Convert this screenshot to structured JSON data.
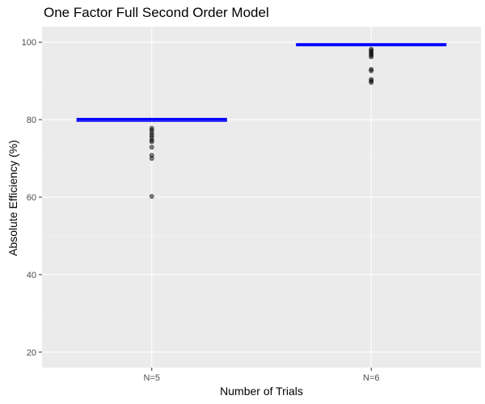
{
  "chart_data": {
    "type": "boxplot",
    "title": "One Factor Full Second Order Model",
    "xlabel": "Number of Trials",
    "ylabel": "Absolute Efficiency (%)",
    "categories": [
      "N=5",
      "N=6"
    ],
    "ylim": [
      16,
      104
    ],
    "yticks": [
      20,
      40,
      60,
      80,
      100
    ],
    "grid": true,
    "boxes": [
      {
        "category": "N=5",
        "q1": 79.6,
        "median": 80.0,
        "q3": 80.3,
        "whisker_low": 79.6,
        "whisker_high": 80.3,
        "outliers": [
          77.8,
          77.3,
          76.6,
          76.0,
          75.4,
          74.7,
          74.3,
          72.9,
          70.8,
          70.0,
          60.2
        ]
      },
      {
        "category": "N=6",
        "q1": 99.1,
        "median": 99.4,
        "q3": 99.6,
        "whisker_low": 99.1,
        "whisker_high": 99.6,
        "outliers": [
          98.2,
          97.8,
          97.4,
          97.0,
          96.6,
          96.2,
          93.0,
          92.6,
          90.4,
          90.0,
          89.6
        ]
      }
    ],
    "colors": {
      "panel": "#ebebeb",
      "grid_major": "#ffffff",
      "box_outline": "#0000ff",
      "box_fill": "#ffffff",
      "outlier": "#000000"
    }
  }
}
